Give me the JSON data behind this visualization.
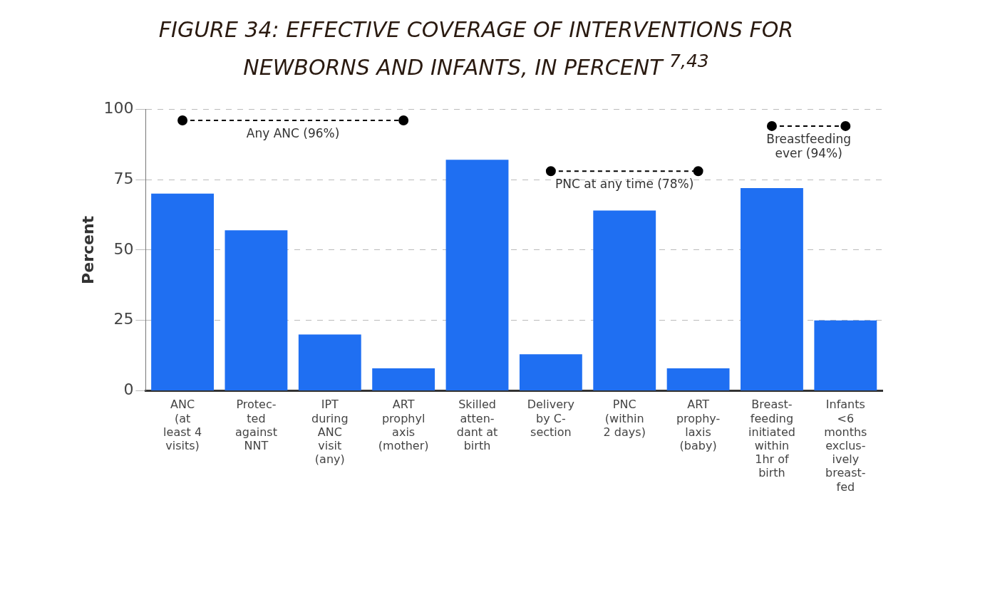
{
  "chart_data": {
    "type": "bar",
    "title": "FIGURE 34: EFFECTIVE COVERAGE OF INTERVENTIONS FOR NEWBORNS AND INFANTS, IN PERCENT $^{7,43}$",
    "ylabel": "Percent",
    "categories": [
      "ANC\n(at\nleast 4\nvisits)",
      "Protec-\nted\nagainst\nNNT",
      "IPT\nduring\nANC\nvisit\n(any)",
      "ART\nprophyl\naxis\n(mother)",
      "Skilled\natten-\ndant at\nbirth",
      "Delivery\nby C-\nsection",
      "PNC\n(within\n2 days)",
      "ART\nprophy-\nlaxis\n(baby)",
      "Breast-\nfeeding\ninitiated\nwithin\n1hr of\nbirth",
      "Infants\n<6\nmonths\nexclus-\nively\nbreast-\nfed"
    ],
    "series": [
      {
        "color": "#1f6ff2",
        "values": [
          70,
          57,
          20,
          8,
          82,
          13,
          64,
          8,
          72,
          25
        ]
      },
      {
        "type": "line",
        "name": "Any ANC (96%)",
        "color": "#000000",
        "values": [
          96,
          96,
          96,
          96,
          null,
          null,
          null,
          null,
          null,
          null
        ]
      },
      {
        "type": "line",
        "name": "PNC at any time (78%)",
        "color": "#000000",
        "values": [
          null,
          null,
          null,
          null,
          null,
          78,
          78,
          78,
          null,
          null
        ]
      },
      {
        "type": "line",
        "name": "Breastfeeding ever (94%)",
        "color": "#000000",
        "values": [
          null,
          null,
          null,
          null,
          null,
          null,
          null,
          null,
          94,
          94
        ]
      }
    ],
    "ylim": [
      0,
      100
    ],
    "yticks": [
      0,
      25,
      50,
      75,
      100
    ],
    "grid": "y",
    "legend": false,
    "marker": "circle",
    "line_style": "dashed"
  }
}
